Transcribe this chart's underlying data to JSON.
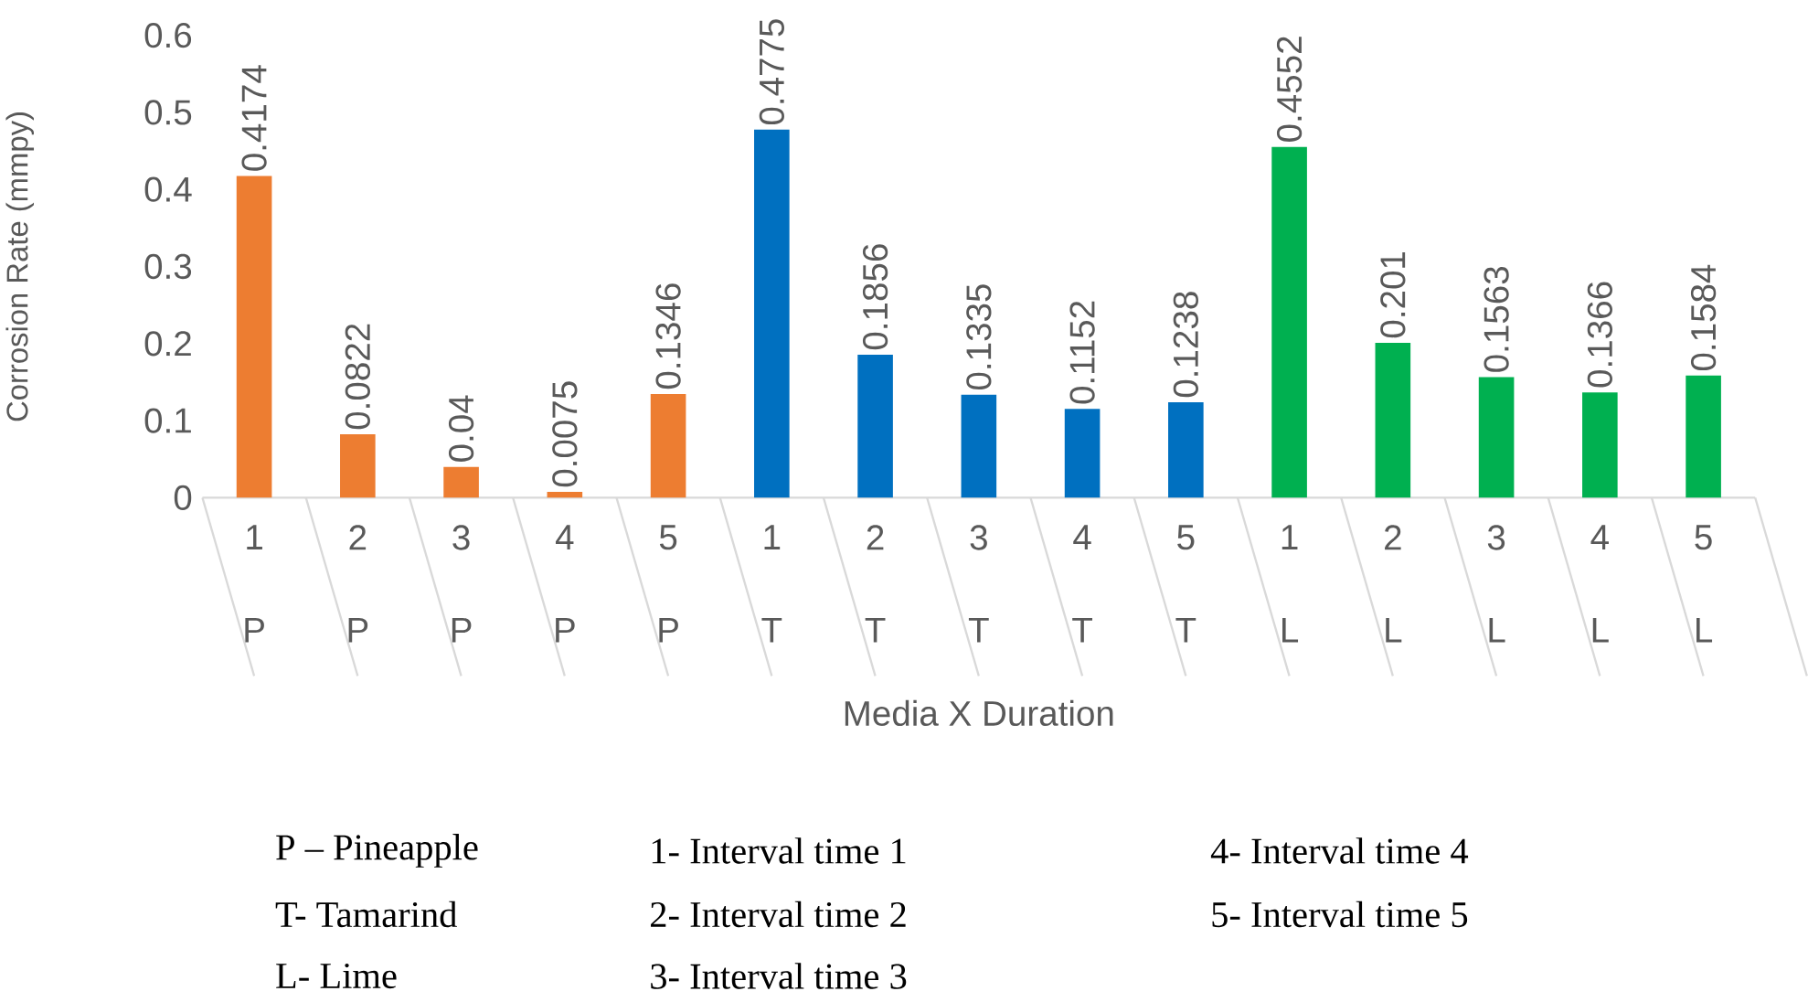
{
  "chart_data": {
    "type": "bar",
    "xlabel": "Media X Duration",
    "ylabel": "Corrosion Rate (mmpy)",
    "categories": [
      "1",
      "2",
      "3",
      "4",
      "5",
      "1",
      "2",
      "3",
      "4",
      "5",
      "1",
      "2",
      "3",
      "4",
      "5"
    ],
    "values": [
      0.4174,
      0.0822,
      0.04,
      0.0075,
      0.1346,
      0.4775,
      0.1856,
      0.1335,
      0.1152,
      0.1238,
      0.4552,
      0.201,
      0.1563,
      0.1366,
      0.1584
    ],
    "colors": [
      "#ed7d31",
      "#ed7d31",
      "#ed7d31",
      "#ed7d31",
      "#ed7d31",
      "#0070c0",
      "#0070c0",
      "#0070c0",
      "#0070c0",
      "#0070c0",
      "#00b050",
      "#00b050",
      "#00b050",
      "#00b050",
      "#00b050"
    ],
    "data_labels": true,
    "ylim": [
      0,
      0.6
    ],
    "yticks": [
      0,
      0.1,
      0.2,
      0.3,
      0.4,
      0.5,
      0.6
    ],
    "annotations": [
      "P",
      "P",
      "P",
      "P",
      "P",
      "T",
      "T",
      "T",
      "T",
      "T",
      "L",
      "L",
      "L",
      "L",
      "L",
      "P – Pineapple",
      "1- Interval time 1",
      "4- Interval time 4",
      "T- Tamarind",
      "2- Interval time 2",
      "5- Interval time 5",
      "L- Lime",
      "3- Interval time 3"
    ]
  }
}
